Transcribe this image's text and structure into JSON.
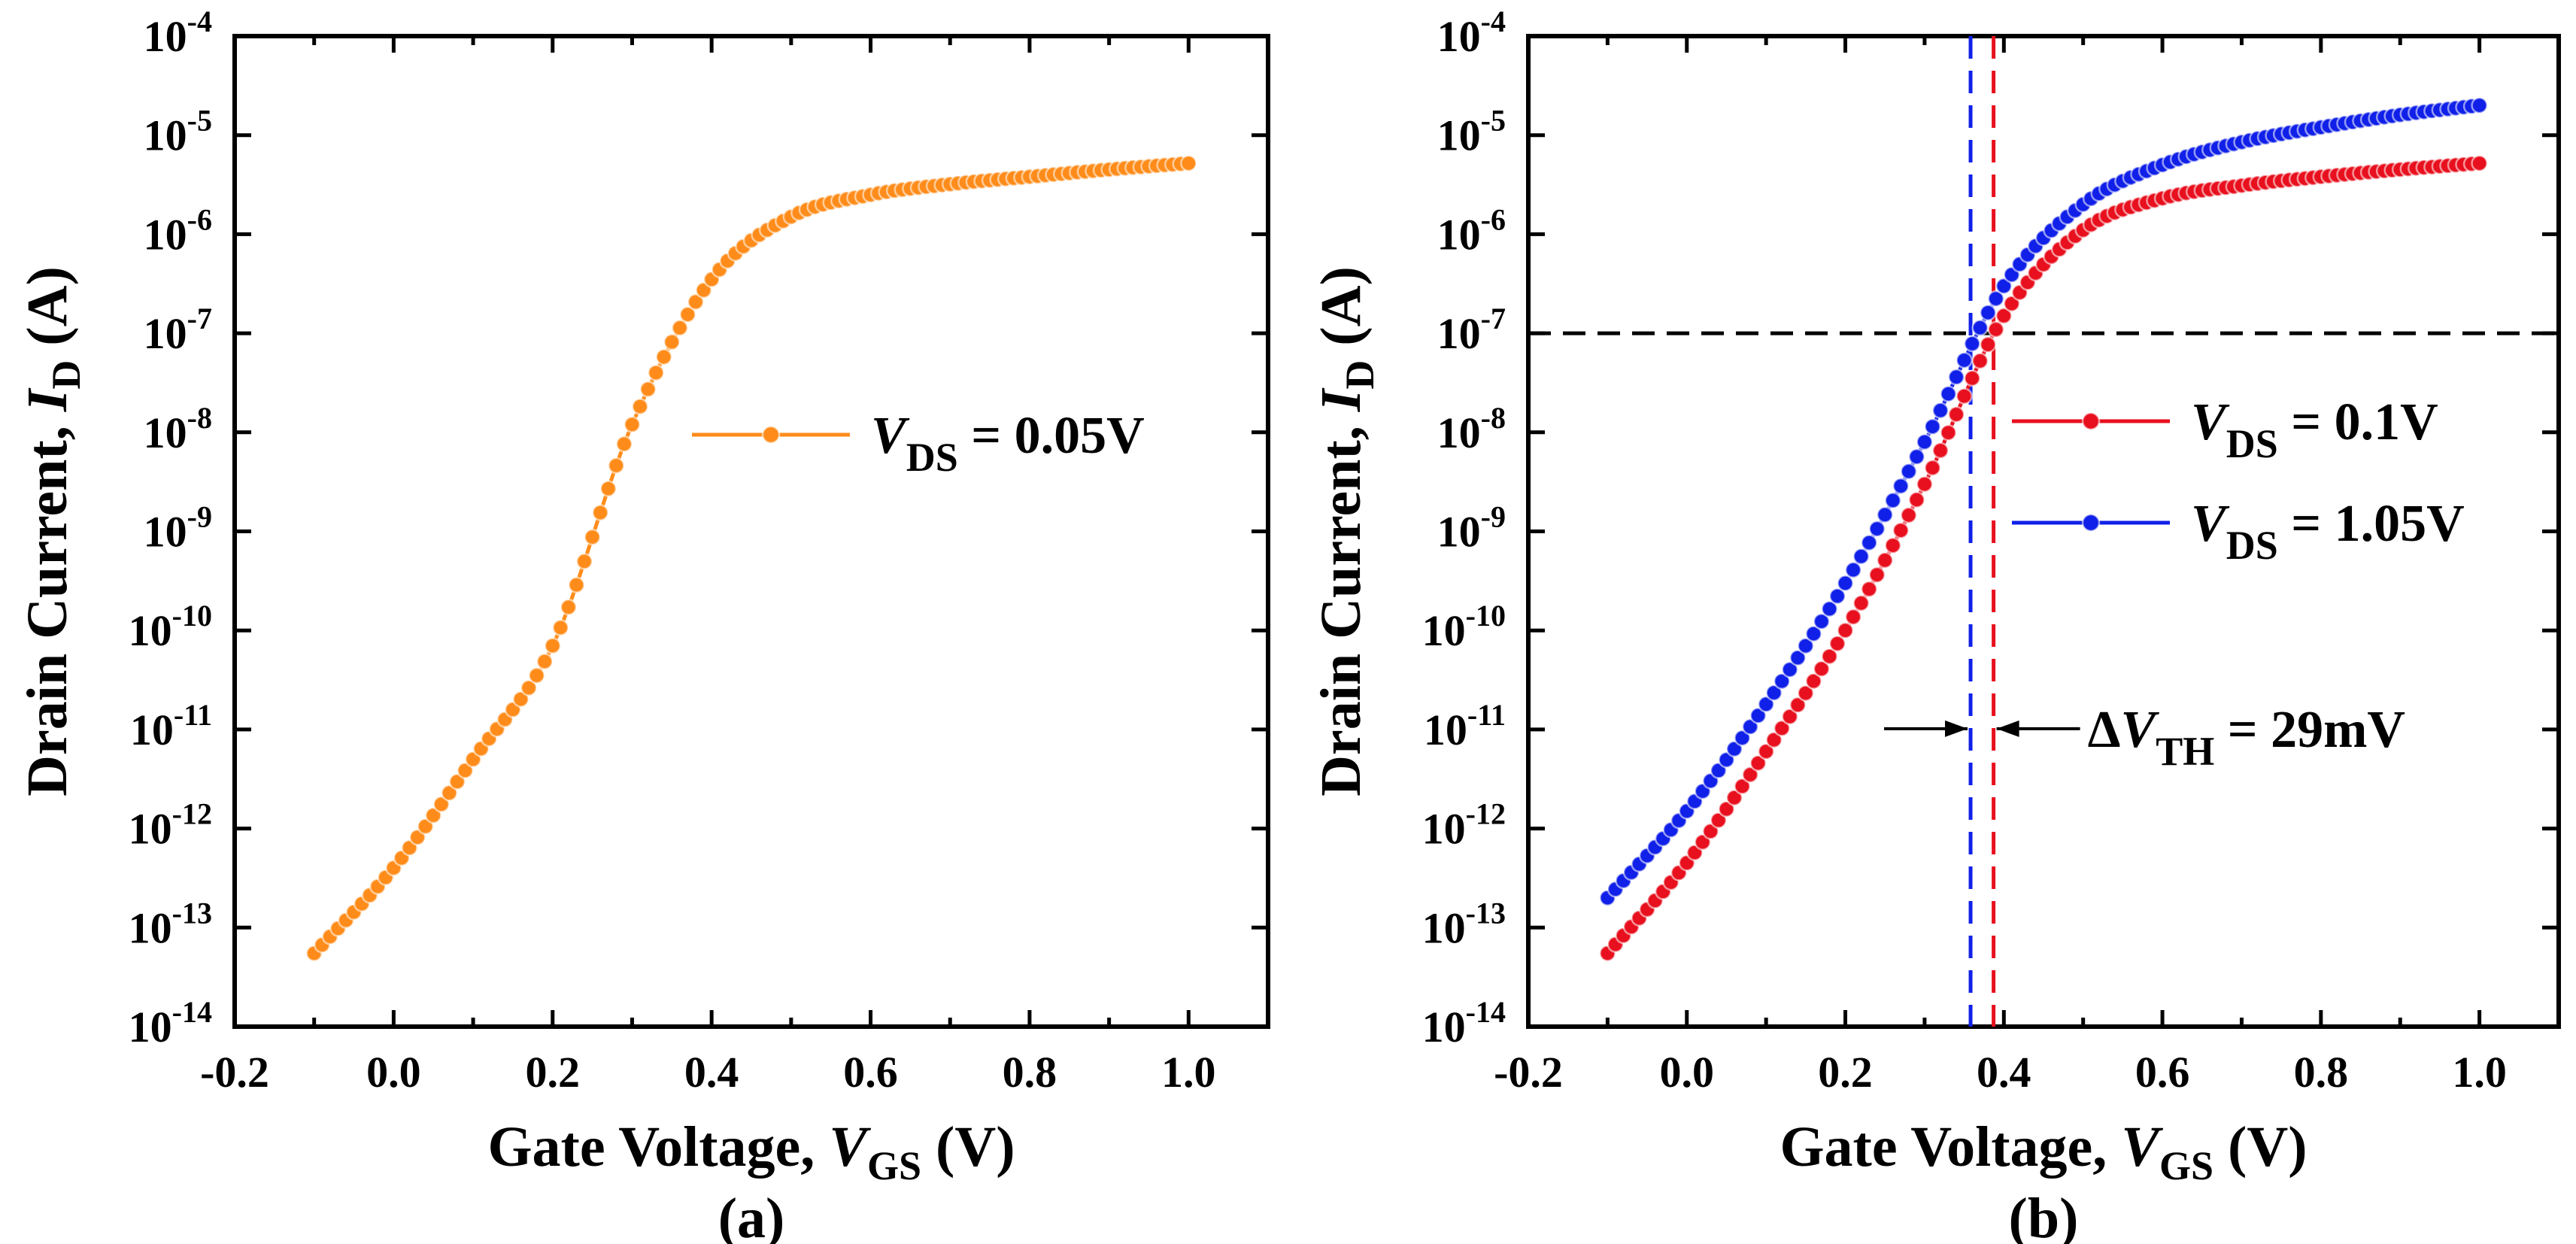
{
  "chart_data": [
    {
      "type": "line",
      "panel_label": "(a)",
      "x_range": [
        -0.2,
        1.1
      ],
      "y_scale": "log",
      "y_range": [
        1e-14,
        0.0001
      ],
      "xlabel": {
        "prefix": "Gate Voltage, ",
        "var": "V",
        "sub": "GS",
        "unit": " (V)"
      },
      "ylabel": {
        "prefix": "Drain Current, ",
        "var": "I",
        "sub": "D",
        "unit": " (A)"
      },
      "x_ticks": [
        "-0.2",
        "0.0",
        "0.2",
        "0.4",
        "0.6",
        "0.8",
        "1.0"
      ],
      "y_ticks": [
        {
          "base": "10",
          "exp": "-14"
        },
        {
          "base": "10",
          "exp": "-13"
        },
        {
          "base": "10",
          "exp": "-12"
        },
        {
          "base": "10",
          "exp": "-11"
        },
        {
          "base": "10",
          "exp": "-10"
        },
        {
          "base": "10",
          "exp": "-9"
        },
        {
          "base": "10",
          "exp": "-8"
        },
        {
          "base": "10",
          "exp": "-7"
        },
        {
          "base": "10",
          "exp": "-6"
        },
        {
          "base": "10",
          "exp": "-5"
        },
        {
          "base": "10",
          "exp": "-4"
        }
      ],
      "legend_position": "center-right",
      "series": [
        {
          "name": "VDS = 0.05V",
          "legend": {
            "var": "V",
            "sub": "DS",
            "rest": " = 0.05V"
          },
          "color": "#FF8C1A",
          "x": [
            -0.1,
            0.0,
            0.1,
            0.2,
            0.3,
            0.4,
            0.5,
            0.6,
            0.7,
            0.8,
            0.9,
            1.0
          ],
          "y": [
            5.5e-14,
            4e-13,
            5e-12,
            7e-11,
            1.2e-08,
            3.5e-07,
            1.5e-06,
            2.5e-06,
            3.2e-06,
            3.8e-06,
            4.5e-06,
            5.2e-06
          ]
        }
      ],
      "guides": []
    },
    {
      "type": "line",
      "panel_label": "(b)",
      "x_range": [
        -0.2,
        1.1
      ],
      "y_scale": "log",
      "y_range": [
        1e-14,
        0.0001
      ],
      "xlabel": {
        "prefix": "Gate Voltage, ",
        "var": "V",
        "sub": "GS",
        "unit": " (V)"
      },
      "ylabel": {
        "prefix": "Drain Current, ",
        "var": "I",
        "sub": "D",
        "unit": " (A)"
      },
      "x_ticks": [
        "-0.2",
        "0.0",
        "0.2",
        "0.4",
        "0.6",
        "0.8",
        "1.0"
      ],
      "y_ticks": [
        {
          "base": "10",
          "exp": "-14"
        },
        {
          "base": "10",
          "exp": "-13"
        },
        {
          "base": "10",
          "exp": "-12"
        },
        {
          "base": "10",
          "exp": "-11"
        },
        {
          "base": "10",
          "exp": "-10"
        },
        {
          "base": "10",
          "exp": "-9"
        },
        {
          "base": "10",
          "exp": "-8"
        },
        {
          "base": "10",
          "exp": "-7"
        },
        {
          "base": "10",
          "exp": "-6"
        },
        {
          "base": "10",
          "exp": "-5"
        },
        {
          "base": "10",
          "exp": "-4"
        }
      ],
      "legend_position": "center-right",
      "series": [
        {
          "name": "VDS = 0.1V",
          "legend": {
            "var": "V",
            "sub": "DS",
            "rest": " = 0.1V"
          },
          "color": "#E8101E",
          "x": [
            -0.1,
            0.0,
            0.1,
            0.2,
            0.3,
            0.4,
            0.5,
            0.6,
            0.7,
            0.8,
            0.9,
            1.0
          ],
          "y": [
            5.5e-14,
            4.5e-13,
            6e-12,
            1e-10,
            3e-09,
            1.5e-07,
            1.1e-06,
            2.3e-06,
            3.1e-06,
            3.8e-06,
            4.5e-06,
            5.2e-06
          ]
        },
        {
          "name": "VDS = 1.05V",
          "legend": {
            "var": "V",
            "sub": "DS",
            "rest": " = 1.05V"
          },
          "color": "#1020E8",
          "x": [
            -0.1,
            0.0,
            0.1,
            0.2,
            0.3,
            0.4,
            0.5,
            0.6,
            0.7,
            0.8,
            0.9,
            1.0
          ],
          "y": [
            2e-13,
            1.5e-12,
            1.8e-11,
            3e-10,
            8e-09,
            3e-07,
            2e-06,
            5e-06,
            8.5e-06,
            1.2e-05,
            1.6e-05,
            2e-05
          ]
        }
      ],
      "guides": [
        {
          "type": "hline",
          "y": 1e-07,
          "color": "#000000"
        },
        {
          "type": "vline",
          "x": 0.358,
          "color": "#1020E8"
        },
        {
          "type": "vline",
          "x": 0.387,
          "color": "#E8101E"
        }
      ],
      "annotation": {
        "prefix": "Δ",
        "var": "V",
        "sub": "TH",
        "rest": " = 29mV",
        "x_from": 0.358,
        "x_to": 0.387,
        "y": 1e-11
      }
    }
  ]
}
